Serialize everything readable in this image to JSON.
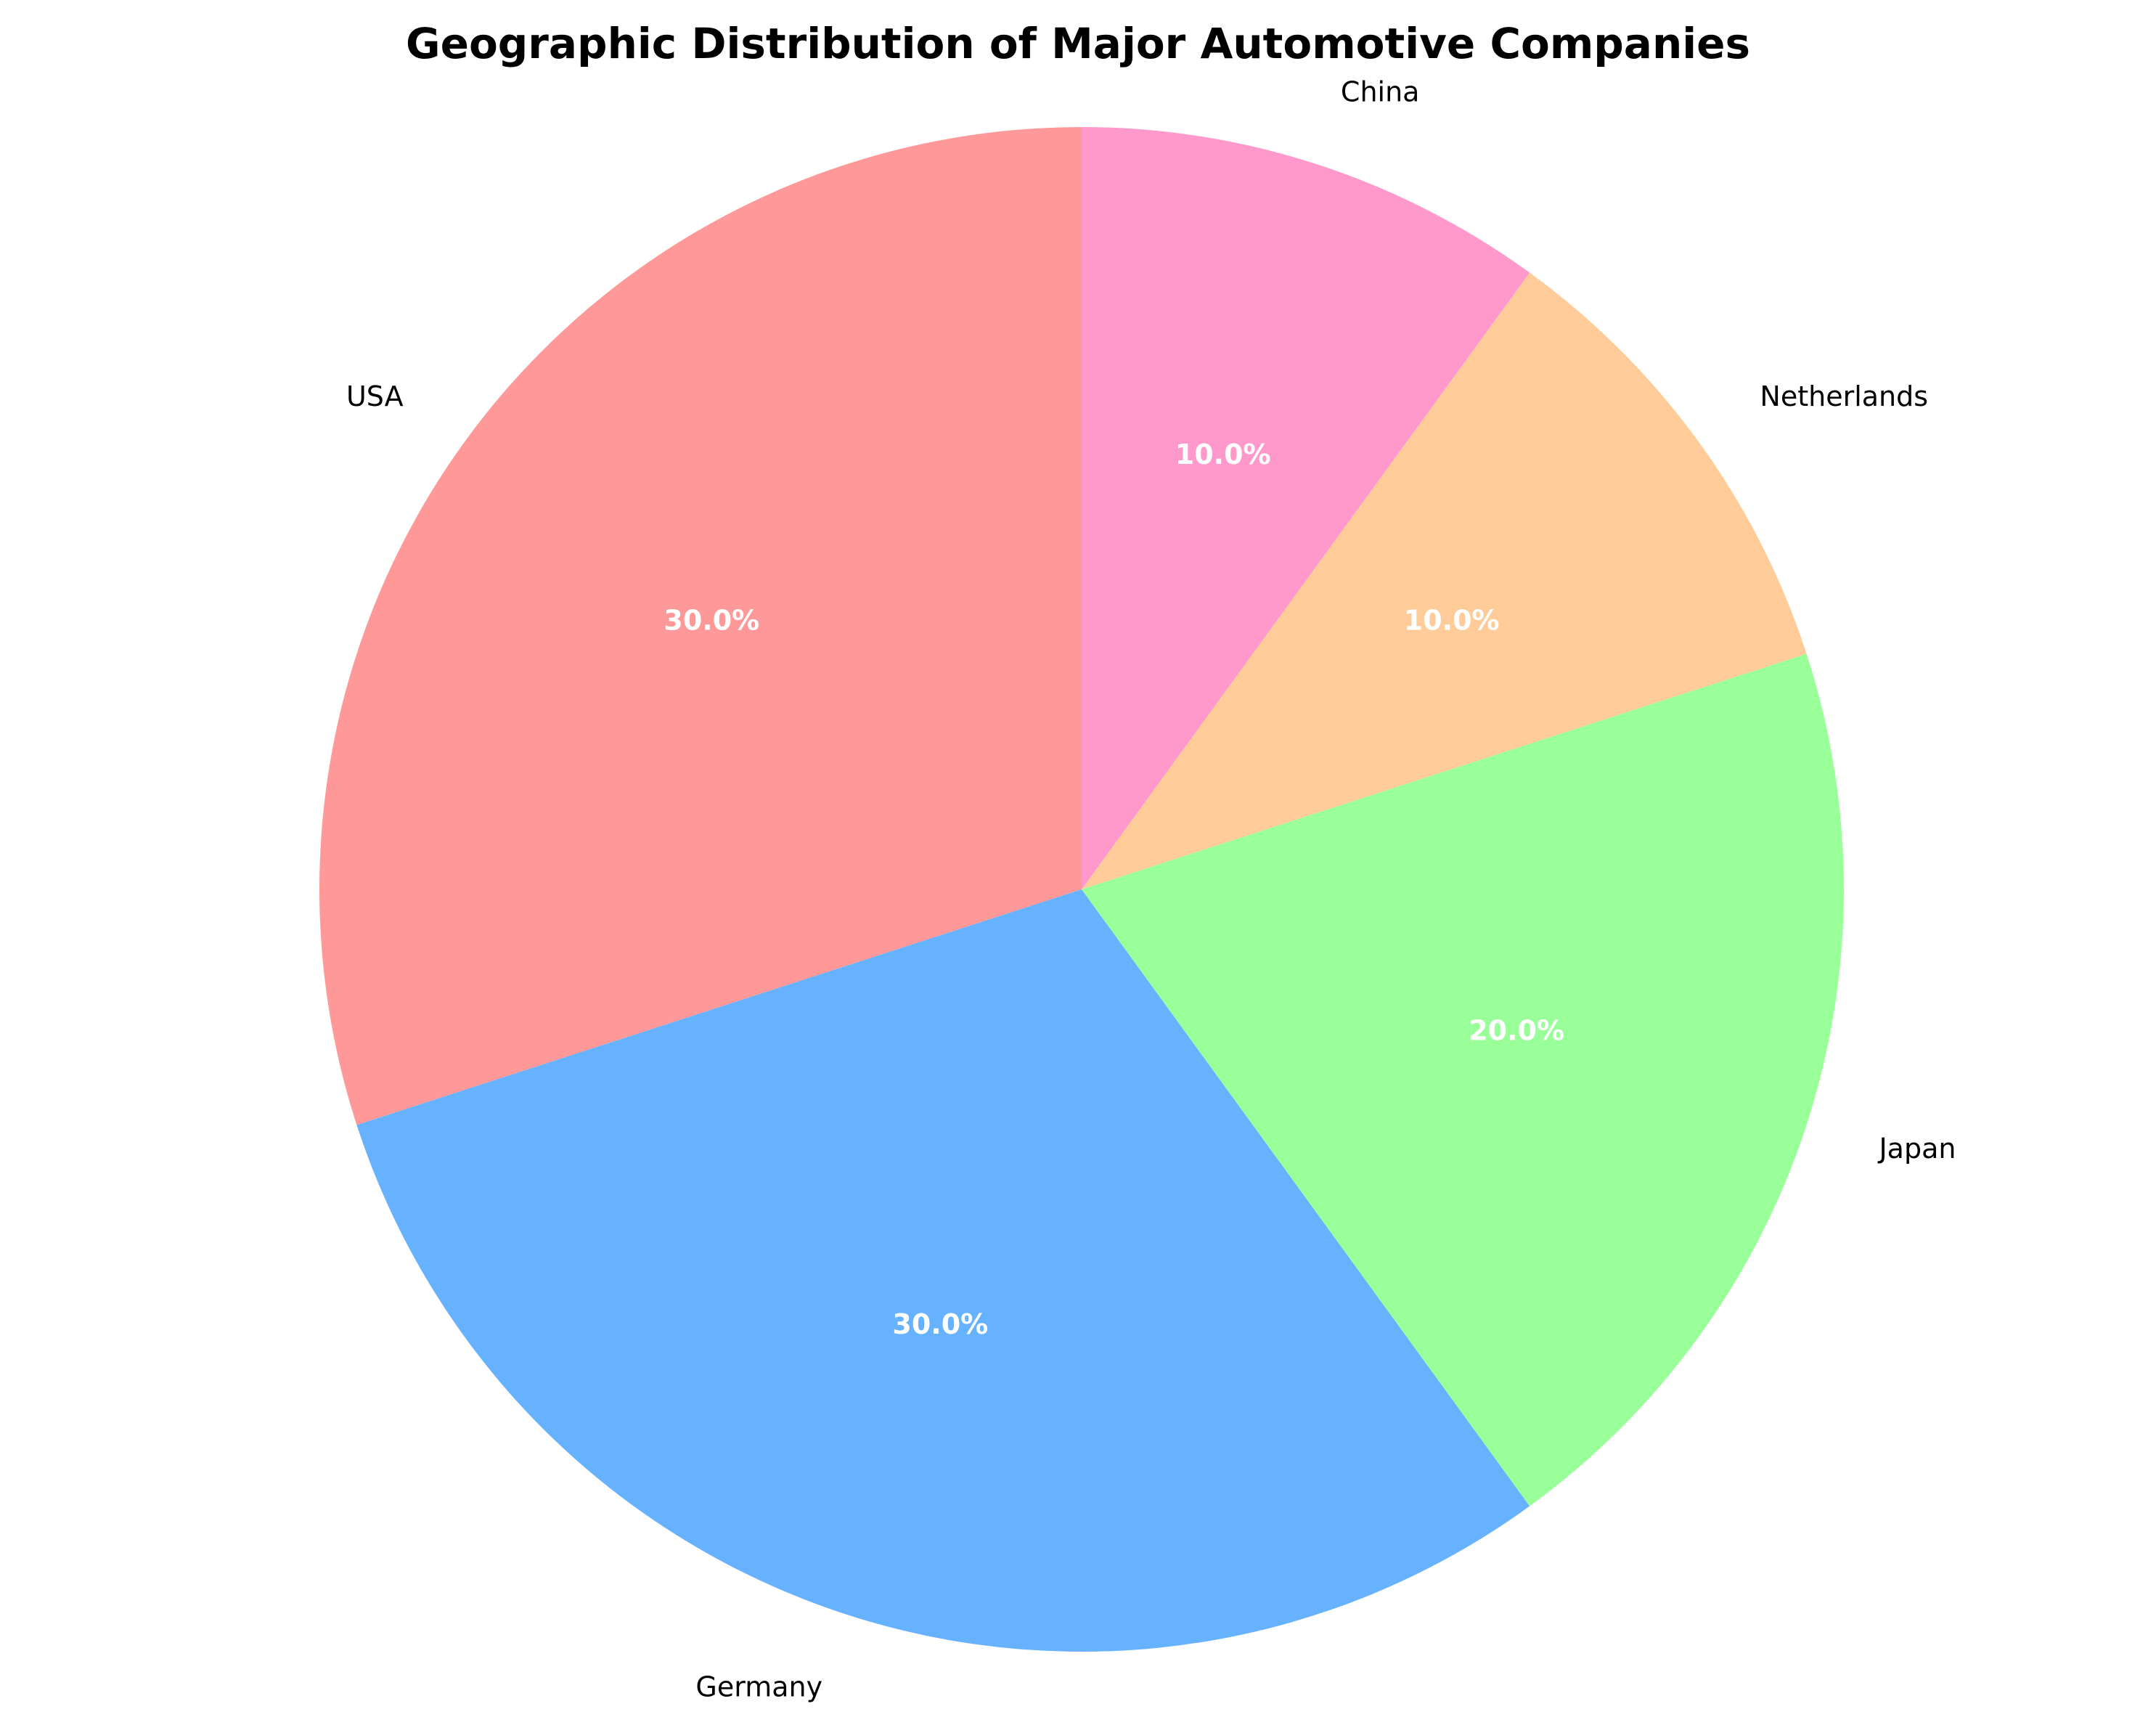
{
  "chart_data": {
    "type": "pie",
    "title": "Geographic Distribution of Major Automotive Companies",
    "start_angle_deg": 90,
    "direction": "counterclockwise",
    "slices": [
      {
        "label": "USA",
        "value": 30.0,
        "pct_label": "30.0%",
        "color": "#FF9999"
      },
      {
        "label": "Germany",
        "value": 30.0,
        "pct_label": "30.0%",
        "color": "#66B2FF"
      },
      {
        "label": "Japan",
        "value": 20.0,
        "pct_label": "20.0%",
        "color": "#99FF99"
      },
      {
        "label": "Netherlands",
        "value": 10.0,
        "pct_label": "10.0%",
        "color": "#FFCC99"
      },
      {
        "label": "China",
        "value": 10.0,
        "pct_label": "10.0%",
        "color": "#FF99CC"
      }
    ]
  }
}
